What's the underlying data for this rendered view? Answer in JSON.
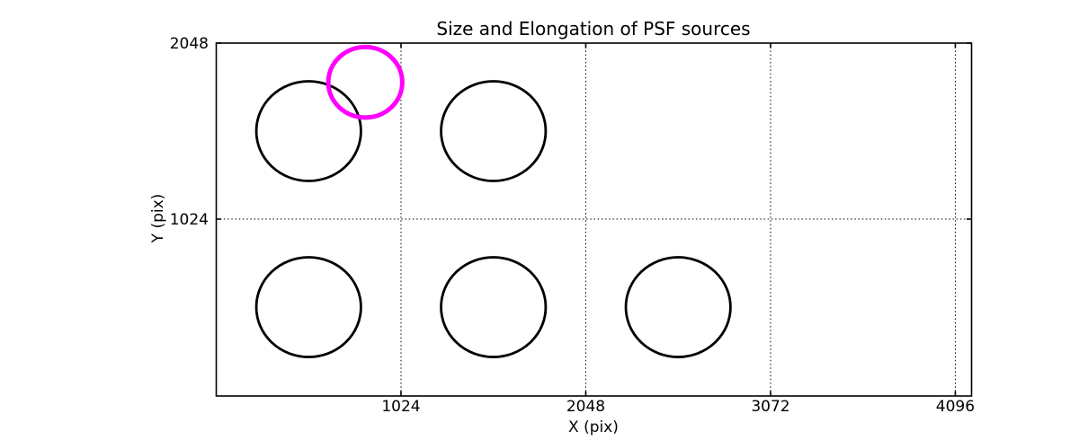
{
  "figure": {
    "background": "#ffffff"
  },
  "chart_data": {
    "type": "scatter",
    "title": "Size and Elongation of PSF sources",
    "xlabel": "X (pix)",
    "ylabel": "Y (pix)",
    "xlim": [
      0,
      4186
    ],
    "ylim": [
      -5,
      2048
    ],
    "xticks": [
      1024,
      2048,
      3072,
      4096
    ],
    "yticks": [
      1024,
      2048
    ],
    "grid": "dotted",
    "grid_on": true,
    "legend": "none",
    "colors": {
      "axis": "#000000",
      "source_outline": "#000000",
      "highlight": "#ff00ff",
      "background": "#ffffff"
    },
    "sources": [
      {
        "x": 512,
        "y": 1536,
        "r": 290,
        "color": "#000000",
        "linewidth": 2.8,
        "highlighted": false
      },
      {
        "x": 1536,
        "y": 1536,
        "r": 290,
        "color": "#000000",
        "linewidth": 2.8,
        "highlighted": false
      },
      {
        "x": 512,
        "y": 512,
        "r": 290,
        "color": "#000000",
        "linewidth": 2.8,
        "highlighted": false
      },
      {
        "x": 1536,
        "y": 512,
        "r": 290,
        "color": "#000000",
        "linewidth": 2.8,
        "highlighted": false
      },
      {
        "x": 2560,
        "y": 512,
        "r": 290,
        "color": "#000000",
        "linewidth": 2.8,
        "highlighted": false
      },
      {
        "x": 826,
        "y": 1820,
        "r": 205,
        "color": "#ff00ff",
        "linewidth": 5,
        "highlighted": true
      }
    ]
  }
}
